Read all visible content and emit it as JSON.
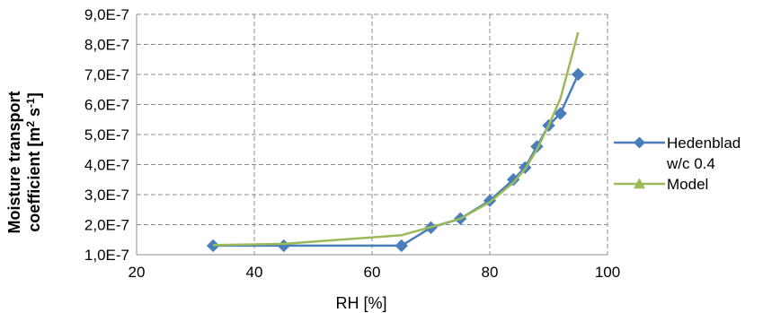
{
  "chart_data": {
    "type": "line",
    "xlabel": "RH [%]",
    "ylabel": {
      "line1": "Moisture transport",
      "line2_prefix": "coefficient [m",
      "sup1": "2",
      "mid": " s",
      "sup2": "-1",
      "suffix": "]"
    },
    "xlim": [
      20,
      100
    ],
    "ylim": [
      1e-07,
      9e-07
    ],
    "x_ticks": [
      20,
      40,
      60,
      80,
      100
    ],
    "x_tick_labels": [
      "20",
      "40",
      "60",
      "80",
      "100"
    ],
    "y_ticks": [
      1e-07,
      2e-07,
      3e-07,
      4e-07,
      5e-07,
      6e-07,
      7e-07,
      8e-07,
      9e-07
    ],
    "y_tick_labels": [
      "1,0E-7",
      "2,0E-7",
      "3,0E-7",
      "4,0E-7",
      "5,0E-7",
      "6,0E-7",
      "7,0E-7",
      "8,0E-7",
      "9,0E-7"
    ],
    "grid": true,
    "grid_style": "dashed",
    "legend_position": "right",
    "series": [
      {
        "name": "Hedenblad w/c 0.4",
        "legend_lines": [
          "Hedenblad",
          "w/c 0.4"
        ],
        "color": "#4a7ebb",
        "marker": "diamond",
        "x": [
          33,
          45,
          65,
          70,
          75,
          80,
          84,
          86,
          88,
          90,
          92,
          95
        ],
        "y": [
          1.3e-07,
          1.3e-07,
          1.3e-07,
          1.9e-07,
          2.2e-07,
          2.8e-07,
          3.5e-07,
          3.9e-07,
          4.6e-07,
          5.3e-07,
          5.7e-07,
          7e-07
        ]
      },
      {
        "name": "Model",
        "legend_lines": [
          "Model"
        ],
        "color": "#9bbb59",
        "marker": "triangle",
        "x": [
          33,
          45,
          65,
          70,
          75,
          80,
          84,
          86,
          88,
          90,
          92,
          95
        ],
        "y": [
          1.32e-07,
          1.36e-07,
          1.65e-07,
          1.92e-07,
          2.2e-07,
          2.75e-07,
          3.4e-07,
          3.85e-07,
          4.5e-07,
          5.3e-07,
          6.2e-07,
          8.4e-07
        ]
      }
    ]
  }
}
